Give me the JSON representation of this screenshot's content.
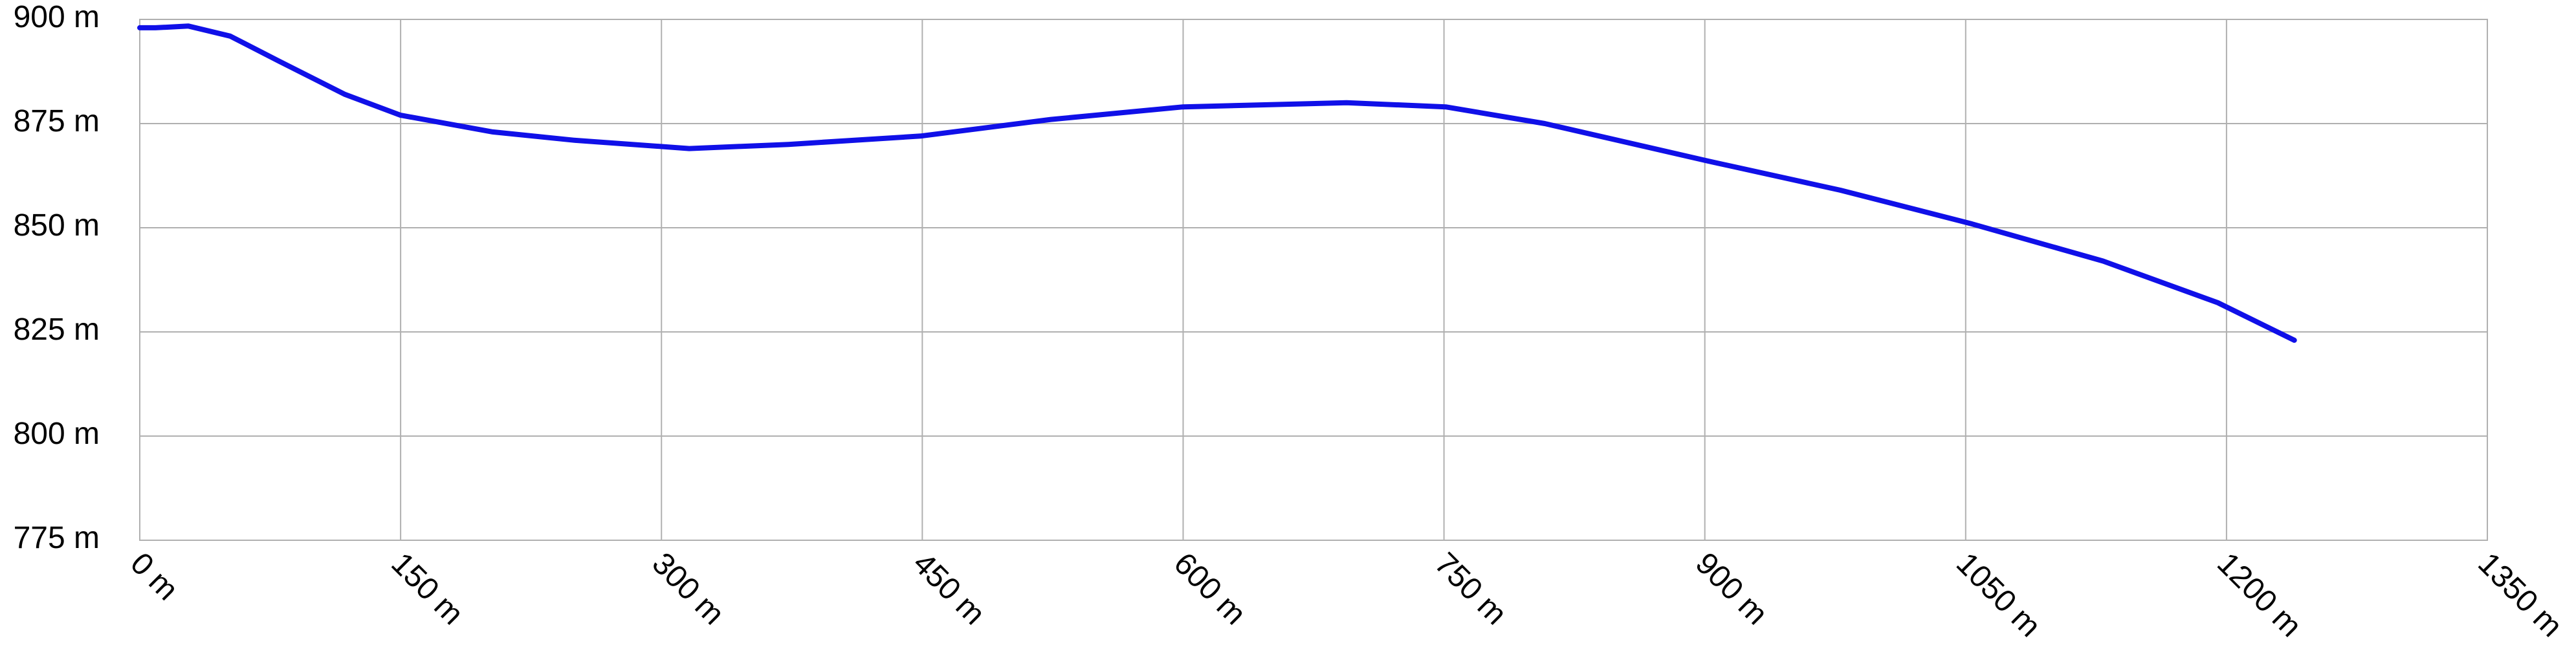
{
  "chart_data": {
    "type": "line",
    "x": [
      0,
      9,
      28,
      52,
      80,
      118,
      150,
      203,
      250,
      316,
      373,
      449,
      524,
      600,
      694,
      751,
      808,
      902,
      978,
      1053,
      1129,
      1195,
      1239
    ],
    "series": [
      {
        "color": "#1010e8",
        "values": [
          898,
          898,
          898.4,
          896,
          890,
          882,
          877,
          873,
          871,
          869,
          870,
          872,
          876,
          879,
          880,
          879,
          875,
          866,
          859,
          851,
          842,
          832,
          823
        ]
      }
    ],
    "xlim": [
      0,
      1350
    ],
    "xticks": [
      {
        "value": 0,
        "label": "0 m"
      },
      {
        "value": 150,
        "label": "150 m"
      },
      {
        "value": 300,
        "label": "300 m"
      },
      {
        "value": 450,
        "label": "450 m"
      },
      {
        "value": 600,
        "label": "600 m"
      },
      {
        "value": 750,
        "label": "750 m"
      },
      {
        "value": 900,
        "label": "900 m"
      },
      {
        "value": 1050,
        "label": "1050 m"
      },
      {
        "value": 1200,
        "label": "1200 m"
      },
      {
        "value": 1350,
        "label": "1350 m"
      }
    ],
    "ylim": [
      775,
      900
    ],
    "yticks": [
      {
        "value": 775,
        "label": "775 m"
      },
      {
        "value": 800,
        "label": "800 m"
      },
      {
        "value": 825,
        "label": "825 m"
      },
      {
        "value": 850,
        "label": "850 m"
      },
      {
        "value": 875,
        "label": "875 m"
      },
      {
        "value": 900,
        "label": "900 m"
      }
    ],
    "grid": true
  }
}
